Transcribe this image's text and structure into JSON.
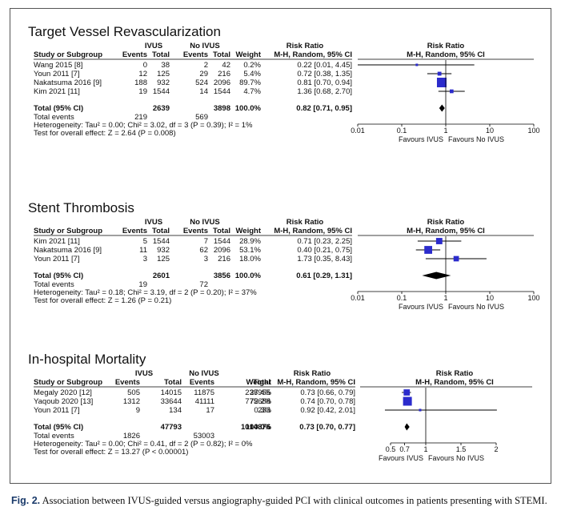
{
  "caption": {
    "label": "Fig. 2.",
    "text": "Association between IVUS-guided versus angiography-guided PCI with clinical outcomes in patients presenting with STEMI."
  },
  "headers": {
    "group1": "IVUS",
    "group2": "No IVUS",
    "risk_ratio": "Risk Ratio",
    "study": "Study or Subgroup",
    "events": "Events",
    "total": "Total",
    "weight": "Weight",
    "method": "M-H, Random, 95% CI",
    "total_label": "Total (95% CI)",
    "total_events_label": "Total events"
  },
  "colors": {
    "marker": "#2b2bcc",
    "diamond": "#000000"
  },
  "chart_data": [
    {
      "type": "forest",
      "title": "Target Vessel Revascularization",
      "studies": [
        {
          "name": "Wang 2015 [8]",
          "e1": "0",
          "t1": "38",
          "e2": "2",
          "t2": "42",
          "weight": "0.2%",
          "ci": "0.22 [0.01, 4.45]",
          "rr": 0.22,
          "lo": 0.01,
          "hi": 4.45
        },
        {
          "name": "Youn 2011 [7]",
          "e1": "12",
          "t1": "125",
          "e2": "29",
          "t2": "216",
          "weight": "5.4%",
          "ci": "0.72 [0.38, 1.35]",
          "rr": 0.72,
          "lo": 0.38,
          "hi": 1.35
        },
        {
          "name": "Nakatsuma 2016 [9]",
          "e1": "188",
          "t1": "932",
          "e2": "524",
          "t2": "2096",
          "weight": "89.7%",
          "ci": "0.81 [0.70, 0.94]",
          "rr": 0.81,
          "lo": 0.7,
          "hi": 0.94
        },
        {
          "name": "Kim 2021 [11]",
          "e1": "19",
          "t1": "1544",
          "e2": "14",
          "t2": "1544",
          "weight": "4.7%",
          "ci": "1.36 [0.68, 2.70]",
          "rr": 1.36,
          "lo": 0.68,
          "hi": 2.7
        }
      ],
      "total": {
        "t1": "2639",
        "t2": "3898",
        "weight": "100.0%",
        "ci": "0.82 [0.71, 0.95]",
        "rr": 0.82,
        "lo": 0.71,
        "hi": 0.95
      },
      "total_events": {
        "e1": "219",
        "e2": "569"
      },
      "heterogeneity": "Heterogeneity: Tau² = 0.00; Chi² = 3.02, df = 3 (P = 0.39); I² = 1%",
      "overall": "Test for overall effect: Z = 2.64 (P = 0.008)",
      "scale": "log",
      "xlim": [
        0.01,
        100
      ],
      "ticks": [
        "0.01",
        "0.1",
        "1",
        "10",
        "100"
      ],
      "favours_left": "Favours IVUS",
      "favours_right": "Favours No IVUS"
    },
    {
      "type": "forest",
      "title": "Stent Thrombosis",
      "studies": [
        {
          "name": "Kim 2021 [11]",
          "e1": "5",
          "t1": "1544",
          "e2": "7",
          "t2": "1544",
          "weight": "28.9%",
          "ci": "0.71 [0.23, 2.25]",
          "rr": 0.71,
          "lo": 0.23,
          "hi": 2.25
        },
        {
          "name": "Nakatsuma 2016 [9]",
          "e1": "11",
          "t1": "932",
          "e2": "62",
          "t2": "2096",
          "weight": "53.1%",
          "ci": "0.40 [0.21, 0.75]",
          "rr": 0.4,
          "lo": 0.21,
          "hi": 0.75
        },
        {
          "name": "Youn 2011 [7]",
          "e1": "3",
          "t1": "125",
          "e2": "3",
          "t2": "216",
          "weight": "18.0%",
          "ci": "1.73 [0.35, 8.43]",
          "rr": 1.73,
          "lo": 0.35,
          "hi": 8.43
        }
      ],
      "total": {
        "t1": "2601",
        "t2": "3856",
        "weight": "100.0%",
        "ci": "0.61 [0.29, 1.31]",
        "rr": 0.61,
        "lo": 0.29,
        "hi": 1.31
      },
      "total_events": {
        "e1": "19",
        "e2": "72"
      },
      "heterogeneity": "Heterogeneity: Tau² = 0.18; Chi² = 3.19, df = 2 (P = 0.20); I² = 37%",
      "overall": "Test for overall effect: Z = 1.26 (P = 0.21)",
      "scale": "log",
      "xlim": [
        0.01,
        100
      ],
      "ticks": [
        "0.01",
        "0.1",
        "1",
        "10",
        "100"
      ],
      "favours_left": "Favours IVUS",
      "favours_right": "Favours No IVUS"
    },
    {
      "type": "forest",
      "title": "In-hospital Mortality",
      "studies": [
        {
          "name": "Megaly 2020 [12]",
          "e1": "505",
          "t1": "14015",
          "e2": "11875",
          "t2": "238955",
          "weight": "27.4%",
          "ci": "0.73 [0.66, 0.79]",
          "rr": 0.73,
          "lo": 0.66,
          "hi": 0.79
        },
        {
          "name": "Yaqoub 2020 [13]",
          "e1": "1312",
          "t1": "33644",
          "e2": "41111",
          "t2": "775688",
          "weight": "72.2%",
          "ci": "0.74 [0.70, 0.78]",
          "rr": 0.74,
          "lo": 0.7,
          "hi": 0.78
        },
        {
          "name": "Youn 2011 [7]",
          "e1": "9",
          "t1": "134",
          "e2": "17",
          "t2": "233",
          "weight": "0.3%",
          "ci": "0.92 [0.42, 2.01]",
          "rr": 0.92,
          "lo": 0.42,
          "hi": 2.01
        }
      ],
      "total": {
        "t1": "47793",
        "t2": "1014876",
        "weight": "100.0%",
        "ci": "0.73 [0.70, 0.77]",
        "rr": 0.73,
        "lo": 0.7,
        "hi": 0.77
      },
      "total_events": {
        "e1": "1826",
        "e2": "53003"
      },
      "heterogeneity": "Heterogeneity: Tau² = 0.00; Chi² = 0.41, df = 2 (P = 0.82); I² = 0%",
      "overall": "Test for overall effect: Z = 13.27 (P < 0.00001)",
      "scale": "linear",
      "xlim": [
        0.5,
        2
      ],
      "ticks": [
        "0.5",
        "0.7",
        "1",
        "1.5",
        "2"
      ],
      "favours_left": "Favours IVUS",
      "favours_right": "Favours No IVUS"
    }
  ]
}
